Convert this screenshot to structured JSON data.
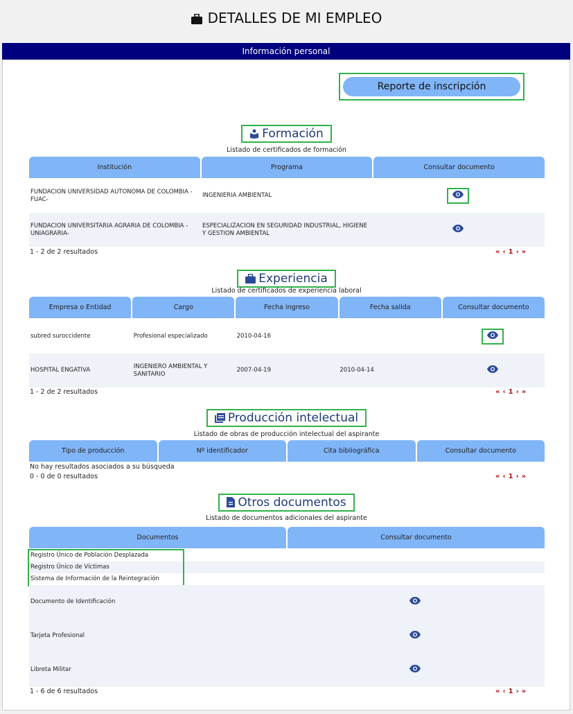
{
  "page": {
    "title": "DETALLES DE MI EMPLEO",
    "section_bar": "Información personal",
    "report_button": "Reporte de inscripción"
  },
  "pagination": {
    "first": "«",
    "prev": "‹",
    "page": "1",
    "next": "›",
    "last": "»"
  },
  "formacion": {
    "title": "Formación",
    "subtitle": "Listado de certificados de formación",
    "headers": [
      "Institución",
      "Programa",
      "Consultar documento"
    ],
    "rows": [
      {
        "institucion": "FUNDACION UNIVERSIDAD AUTONOMA DE COLOMBIA - FUAC-",
        "programa": "INGENIERIA AMBIENTAL"
      },
      {
        "institucion": "FUNDACION UNIVERSITARIA AGRARIA DE COLOMBIA - UNIAGRARIA-",
        "programa": "ESPECIALIZACION EN SEGURIDAD INDUSTRIAL, HIGIENE Y GESTION AMBIENTAL"
      }
    ],
    "results": "1 - 2 de 2 resultados"
  },
  "experiencia": {
    "title": "Experiencia",
    "subtitle": "Listado de certificados de experiencia laboral",
    "headers": [
      "Empresa o Entidad",
      "Cargo",
      "Fecha ingreso",
      "Fecha salida",
      "Consultar documento"
    ],
    "rows": [
      {
        "empresa": "subred suroccidente",
        "cargo": "Profesional especializado",
        "ingreso": "2010-04-16",
        "salida": ""
      },
      {
        "empresa": "HOSPITAL ENGATIVA",
        "cargo": "INGENIERO AMBIENTAL Y SANITARIO",
        "ingreso": "2007-04-19",
        "salida": "2010-04-14"
      }
    ],
    "results": "1 - 2 de 2 resultados"
  },
  "produccion": {
    "title": "Producción intelectual",
    "subtitle": "Listado de obras de producción intelectual del aspirante",
    "headers": [
      "Tipo de producción",
      "Nº identificador",
      "Cita bibliográfica",
      "Consultar documento"
    ],
    "empty": "No hay resultados asociados a su búsqueda",
    "results": "0 - 0 de 0 resultados"
  },
  "otros": {
    "title": "Otros documentos",
    "subtitle": "Listado de documentos adicionales del aspirante",
    "headers": [
      "Documentos",
      "Consultar documento"
    ],
    "links": [
      "Registro Único de Población Desplazada",
      "Registro Único de Víctimas",
      "Sistema de Información de la Reintegración"
    ],
    "rows": [
      "Documento de Identificación",
      "Tarjeta Profesional",
      "Libreta Militar"
    ],
    "results": "1 - 6 de 6 resultados"
  },
  "colors": {
    "navbar": "#00007f",
    "header": "#80b5f7",
    "icon": "#2c4a9a",
    "highlight": "#2fb34a",
    "pagination": "#b01414"
  }
}
